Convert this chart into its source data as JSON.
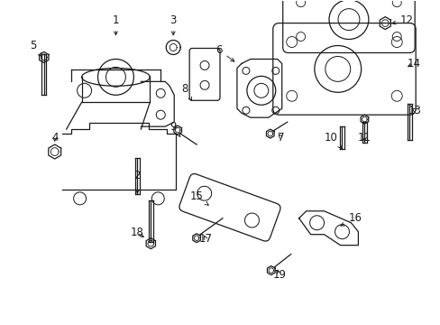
{
  "bg_color": "#ffffff",
  "fig_width": 4.89,
  "fig_height": 3.6,
  "dpi": 100,
  "line_color": "#1a1a1a",
  "line_width": 0.9,
  "font_size": 8.5
}
